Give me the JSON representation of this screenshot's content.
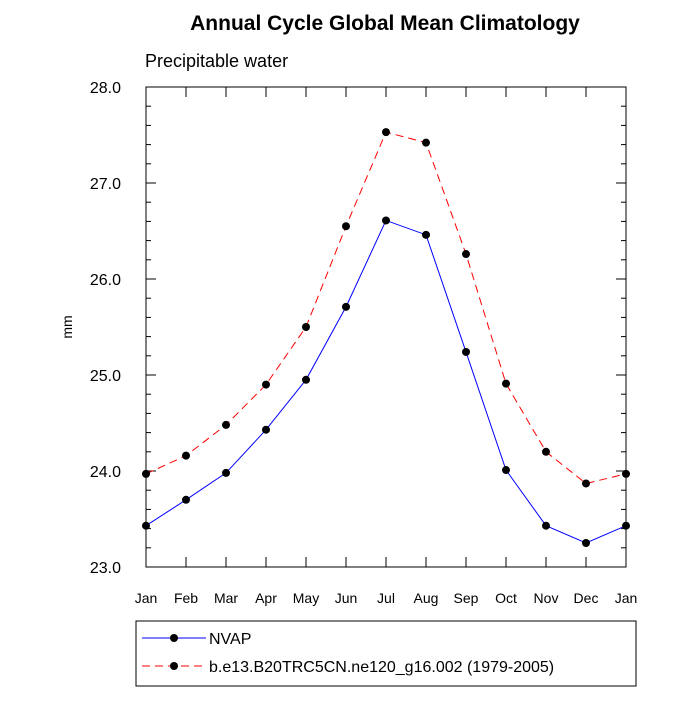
{
  "chart_data": {
    "type": "line",
    "title": "Annual Cycle Global Mean Climatology",
    "subtitle": "Precipitable water",
    "xlabel": "",
    "ylabel": "mm",
    "categories": [
      "Jan",
      "Feb",
      "Mar",
      "Apr",
      "May",
      "Jun",
      "Jul",
      "Aug",
      "Sep",
      "Oct",
      "Nov",
      "Dec",
      "Jan"
    ],
    "ylim": [
      23.0,
      28.0
    ],
    "y_ticks": [
      23.0,
      24.0,
      25.0,
      26.0,
      27.0,
      28.0
    ],
    "y_tick_labels": [
      "23.0",
      "24.0",
      "25.0",
      "26.0",
      "27.0",
      "28.0"
    ],
    "grid": false,
    "legend_position": "bottom",
    "series": [
      {
        "name": "NVAP",
        "color": "#0000ff",
        "line_style": "solid",
        "marker": "filled-circle",
        "values": [
          23.43,
          23.7,
          23.98,
          24.43,
          24.95,
          25.71,
          26.61,
          26.46,
          25.24,
          24.01,
          23.43,
          23.25,
          23.43
        ]
      },
      {
        "name": "b.e13.B20TRC5CN.ne120_g16.002 (1979-2005)",
        "color": "#ff0000",
        "line_style": "dashed",
        "marker": "filled-circle",
        "values": [
          23.97,
          24.16,
          24.48,
          24.9,
          25.5,
          26.55,
          27.53,
          27.42,
          26.26,
          24.91,
          24.2,
          23.87,
          23.97
        ]
      }
    ]
  }
}
